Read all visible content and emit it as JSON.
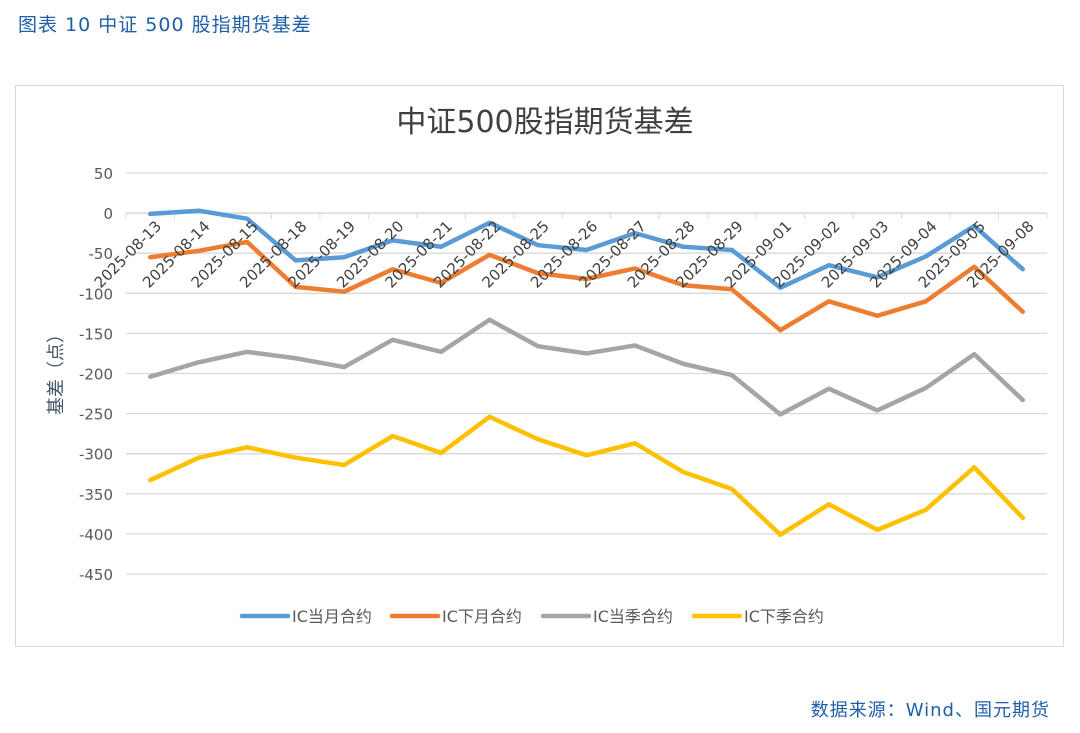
{
  "figure_label": "图表 10  中证 500 股指期货基差",
  "source": "数据来源：Wind、国元期货",
  "chart_data": {
    "type": "line",
    "title": "中证500股指期货基差",
    "xlabel": "",
    "ylabel": "基差（点）",
    "ylim": [
      -450,
      50
    ],
    "yticks": [
      50,
      0,
      -50,
      -100,
      -150,
      -200,
      -250,
      -300,
      -350,
      -400,
      -450
    ],
    "grid": true,
    "legend": "bottom",
    "categories": [
      "2025-08-13",
      "2025-08-14",
      "2025-08-15",
      "2025-08-18",
      "2025-08-19",
      "2025-08-20",
      "2025-08-21",
      "2025-08-22",
      "2025-08-25",
      "2025-08-26",
      "2025-08-27",
      "2025-08-28",
      "2025-08-29",
      "2025-09-01",
      "2025-09-02",
      "2025-09-03",
      "2025-09-04",
      "2025-09-05",
      "2025-09-08"
    ],
    "series": [
      {
        "name": "IC当月合约",
        "color": "#5b9bd5",
        "values": [
          -1,
          3,
          -7,
          -59,
          -55,
          -34,
          -42,
          -12,
          -40,
          -46,
          -25,
          -42,
          -46,
          -93,
          -65,
          -80,
          -54,
          -16,
          -70
        ]
      },
      {
        "name": "IC下月合约",
        "color": "#ed7d31",
        "values": [
          -55,
          -47,
          -36,
          -92,
          -98,
          -70,
          -87,
          -52,
          -75,
          -82,
          -69,
          -90,
          -95,
          -146,
          -110,
          -128,
          -110,
          -67,
          -123
        ]
      },
      {
        "name": "IC当季合约",
        "color": "#a5a5a5",
        "values": [
          -204,
          -186,
          -173,
          -181,
          -192,
          -158,
          -173,
          -133,
          -166,
          -175,
          -165,
          -188,
          -202,
          -251,
          -219,
          -246,
          -218,
          -176,
          -233
        ]
      },
      {
        "name": "IC下季合约",
        "color": "#ffc000",
        "values": [
          -333,
          -305,
          -292,
          -305,
          -314,
          -278,
          -299,
          -254,
          -282,
          -302,
          -287,
          -323,
          -344,
          -401,
          -363,
          -395,
          -370,
          -317,
          -380
        ]
      }
    ]
  }
}
